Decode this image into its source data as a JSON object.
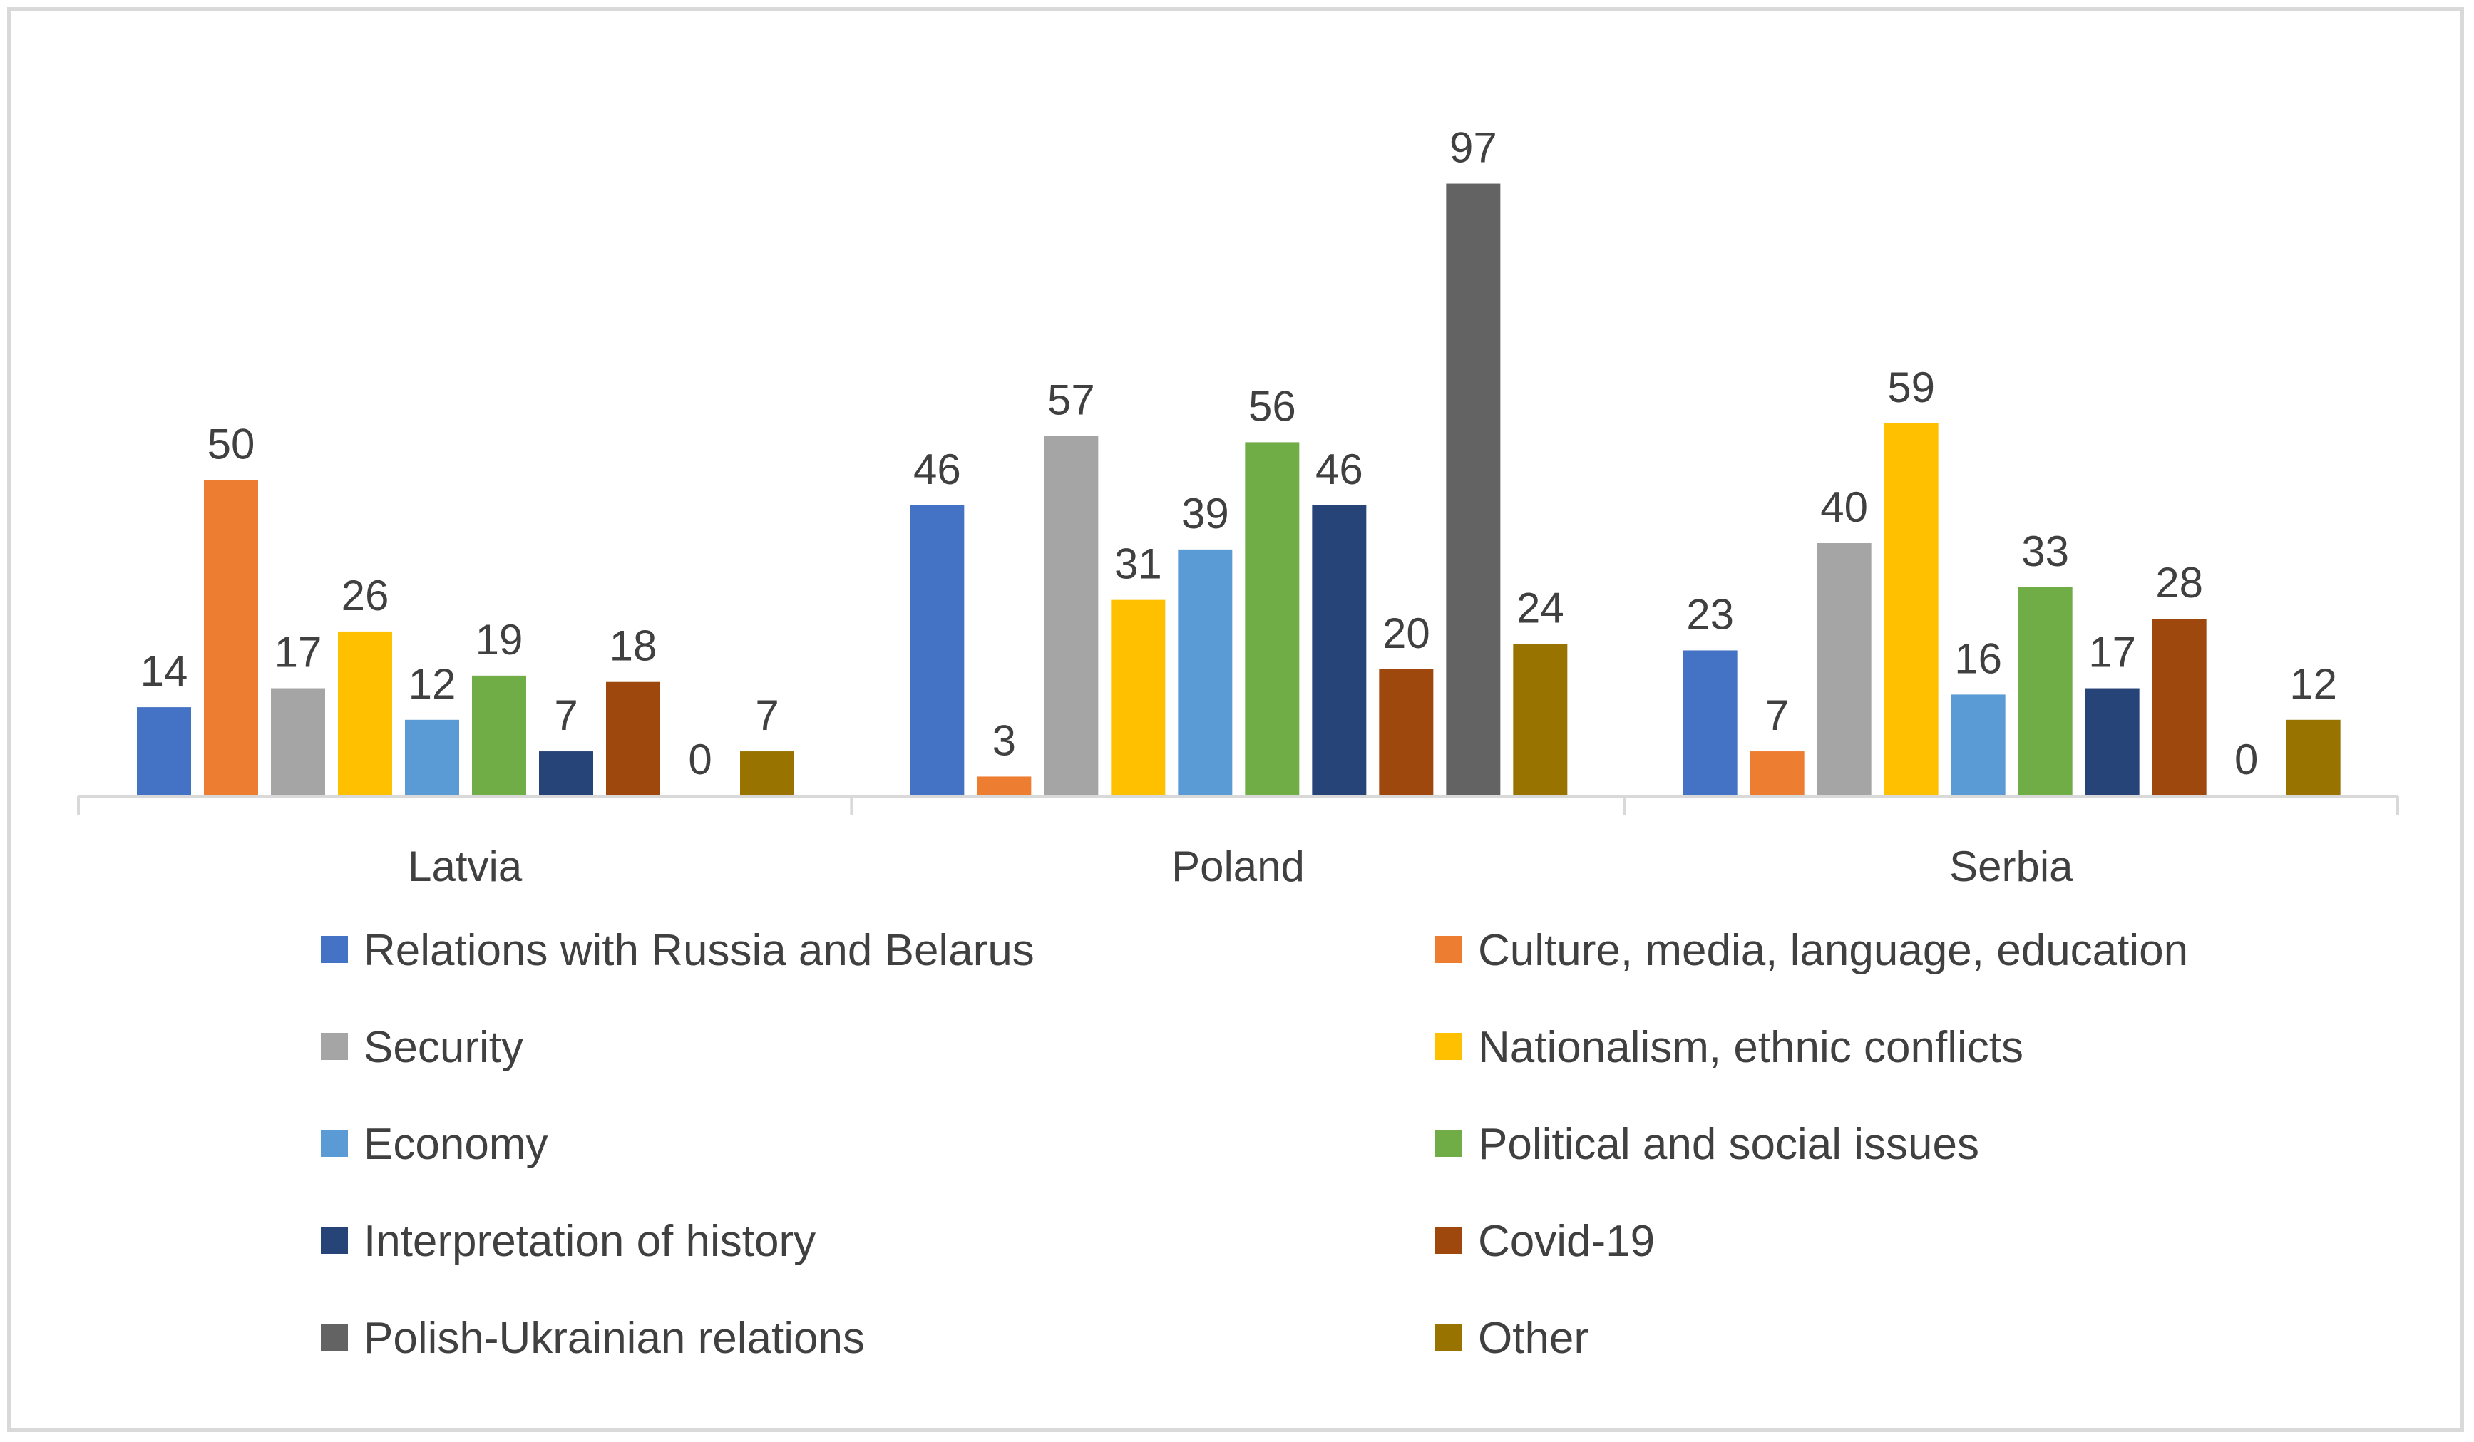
{
  "chart_data": {
    "type": "bar",
    "title": "",
    "xlabel": "",
    "ylabel": "",
    "ylim": [
      0,
      100
    ],
    "grid": false,
    "legend_position": "bottom",
    "categories": [
      "Latvia",
      "Poland",
      "Serbia"
    ],
    "series": [
      {
        "name": "Relations with Russia and Belarus",
        "color": "#4472C4",
        "values": [
          14,
          46,
          23
        ]
      },
      {
        "name": "Culture, media, language, education",
        "color": "#ED7D31",
        "values": [
          50,
          3,
          7
        ]
      },
      {
        "name": "Security",
        "color": "#A5A5A5",
        "values": [
          17,
          57,
          40
        ]
      },
      {
        "name": "Nationalism, ethnic conflicts",
        "color": "#FFC000",
        "values": [
          26,
          31,
          59
        ]
      },
      {
        "name": "Economy",
        "color": "#5B9BD5",
        "values": [
          12,
          39,
          16
        ]
      },
      {
        "name": "Political and social issues",
        "color": "#70AD47",
        "values": [
          19,
          56,
          33
        ]
      },
      {
        "name": "Interpretation of history",
        "color": "#264478",
        "values": [
          7,
          46,
          17
        ]
      },
      {
        "name": "Covid-19",
        "color": "#9E480E",
        "values": [
          18,
          20,
          28
        ]
      },
      {
        "name": "Polish-Ukrainian relations",
        "color": "#636363",
        "values": [
          0,
          97,
          0
        ]
      },
      {
        "name": "Other",
        "color": "#997300",
        "values": [
          7,
          24,
          12
        ]
      }
    ]
  }
}
